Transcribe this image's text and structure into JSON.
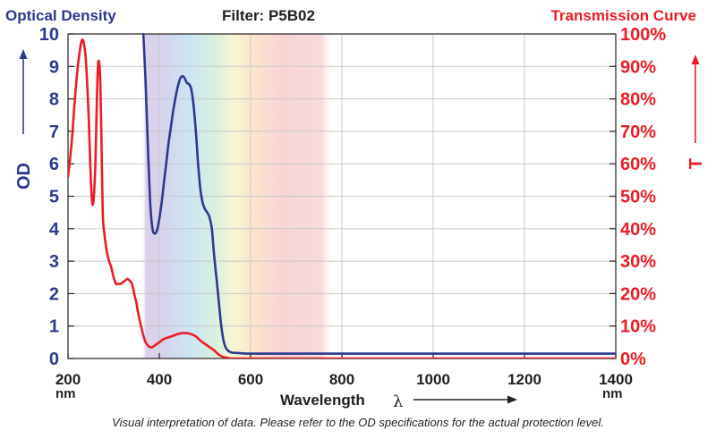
{
  "header": {
    "left_title": "Optical Density",
    "center_title": "Filter: P5B02",
    "right_title": "Transmission Curve"
  },
  "footnote": "Visual interpretation of data. Please refer to the OD specifications for the actual protection level.",
  "colors": {
    "od_color": "#2b3990",
    "transmission_color": "#ed1c24",
    "grid_color": "#c8c8c8",
    "text_color": "#231f20"
  },
  "chart_data": {
    "type": "line",
    "title": "Filter: P5B02",
    "xlabel": "Wavelength",
    "xlabel_symbol": "λ",
    "x_unit": "nm",
    "xlim": [
      200,
      1400
    ],
    "x_ticks": [
      200,
      400,
      600,
      800,
      1000,
      1200,
      1400
    ],
    "x_tick_labels": [
      "200",
      "400",
      "600",
      "800",
      "1000",
      "1200",
      "1400"
    ],
    "y_left": {
      "label": "OD",
      "lim": [
        0,
        10
      ],
      "ticks": [
        0,
        1,
        2,
        3,
        4,
        5,
        6,
        7,
        8,
        9,
        10
      ],
      "tick_labels": [
        "0",
        "1",
        "2",
        "3",
        "4",
        "5",
        "6",
        "7",
        "8",
        "9",
        "10"
      ]
    },
    "y_right": {
      "label": "T",
      "lim": [
        0,
        100
      ],
      "ticks": [
        0,
        10,
        20,
        30,
        40,
        50,
        60,
        70,
        80,
        90,
        100
      ],
      "tick_labels": [
        "0%",
        "10%",
        "20%",
        "30%",
        "40%",
        "50%",
        "60%",
        "70%",
        "80%",
        "90%",
        "100%"
      ]
    },
    "grid": true,
    "series": [
      {
        "axis": "left",
        "x": [
          365,
          370,
          375,
          380,
          385,
          390,
          395,
          400,
          405,
          410,
          415,
          420,
          425,
          430,
          435,
          440,
          445,
          450,
          455,
          460,
          465,
          470,
          475,
          480,
          485,
          490,
          495,
          500,
          505,
          510,
          515,
          520,
          525,
          530,
          535,
          540,
          545,
          550,
          555,
          560,
          570,
          580,
          600,
          700,
          800,
          1000,
          1200,
          1400
        ],
        "y": [
          10,
          8.5,
          6.5,
          4.8,
          4.0,
          3.85,
          3.95,
          4.3,
          4.8,
          5.4,
          6.0,
          6.6,
          7.1,
          7.6,
          8.0,
          8.35,
          8.6,
          8.7,
          8.65,
          8.5,
          8.45,
          8.3,
          7.8,
          7.0,
          6.0,
          5.2,
          4.8,
          4.6,
          4.5,
          4.35,
          4.0,
          3.2,
          2.5,
          1.8,
          1.1,
          0.6,
          0.35,
          0.25,
          0.2,
          0.18,
          0.17,
          0.16,
          0.15,
          0.15,
          0.15,
          0.15,
          0.15,
          0.15
        ]
      },
      {
        "axis": "right",
        "x": [
          200,
          205,
          210,
          215,
          220,
          225,
          230,
          235,
          240,
          245,
          250,
          253,
          256,
          260,
          263,
          266,
          270,
          273,
          276,
          280,
          285,
          290,
          295,
          300,
          305,
          310,
          315,
          320,
          325,
          330,
          335,
          340,
          345,
          350,
          355,
          360,
          365,
          370,
          375,
          380,
          385,
          390,
          395,
          400,
          410,
          420,
          430,
          440,
          450,
          460,
          470,
          480,
          490,
          500,
          510,
          520,
          530,
          540,
          550,
          560,
          600,
          700,
          800,
          1000,
          1200,
          1400
        ],
        "y": [
          56,
          62,
          70,
          80,
          88,
          94,
          98,
          97,
          90,
          75,
          55,
          48,
          49,
          60,
          78,
          91,
          88,
          70,
          45,
          38,
          33,
          30,
          28,
          25,
          23,
          23,
          23,
          23.5,
          24,
          24.5,
          24,
          23,
          20,
          17,
          13,
          10,
          7,
          5,
          4,
          3.5,
          3.5,
          4,
          4.5,
          5,
          6,
          6.5,
          7,
          7.5,
          7.8,
          7.8,
          7.5,
          6.8,
          5.5,
          4.5,
          3.5,
          2.5,
          1.2,
          0.5,
          0.2,
          0,
          0,
          0,
          0,
          0,
          0,
          0
        ]
      }
    ]
  }
}
